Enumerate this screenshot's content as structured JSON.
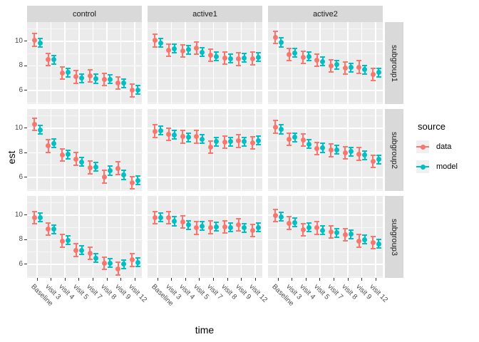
{
  "colors": {
    "data": "#F8766D",
    "model": "#00BFC4",
    "panel_bg": "#EBEBEB",
    "strip_bg": "#D9D9D9",
    "grid": "#FFFFFF",
    "tick_text": "#4D4D4D",
    "axis_title_text": "#000000"
  },
  "chart_data": {
    "type": "pointrange-facet-grid",
    "title": "",
    "xlabel": "time",
    "ylabel": "est",
    "facet_columns": [
      "control",
      "active1",
      "active2"
    ],
    "facet_rows": [
      "subgroup1",
      "subgroup2",
      "subgroup3"
    ],
    "x_categories": [
      "Baseline",
      "visit 3",
      "visit 4",
      "visit 5",
      "visit 7",
      "visit 8",
      "visit 9",
      "visit 12"
    ],
    "y_ticks": [
      6,
      8,
      10
    ],
    "y_minor_gridlines": [
      5,
      7,
      9,
      11
    ],
    "ylim": [
      4.9,
      11.55
    ],
    "grid": "on",
    "legend": {
      "title": "source",
      "position": "right",
      "entries": [
        {
          "label": "data",
          "color": "#F8766D"
        },
        {
          "label": "model",
          "color": "#00BFC4"
        }
      ]
    },
    "error_halfwidth": {
      "data": 0.5,
      "model": 0.35
    },
    "panels": [
      {
        "row": "subgroup1",
        "col": "control",
        "series": {
          "data": [
            10.1,
            8.5,
            7.4,
            7.1,
            7.2,
            6.9,
            6.6,
            6.0
          ],
          "model": [
            9.85,
            8.5,
            7.45,
            7.0,
            6.95,
            6.9,
            6.6,
            6.05
          ]
        }
      },
      {
        "row": "subgroup1",
        "col": "active1",
        "series": {
          "data": [
            10.05,
            9.25,
            9.2,
            9.45,
            8.85,
            8.65,
            8.55,
            8.6
          ],
          "model": [
            9.85,
            9.4,
            9.3,
            9.1,
            8.75,
            8.6,
            8.65,
            8.7
          ]
        }
      },
      {
        "row": "subgroup1",
        "col": "active2",
        "series": {
          "data": [
            10.3,
            8.9,
            8.7,
            8.45,
            8.0,
            7.8,
            7.9,
            7.3
          ],
          "model": [
            9.9,
            9.05,
            8.75,
            8.35,
            8.1,
            7.85,
            7.7,
            7.45
          ]
        }
      },
      {
        "row": "subgroup2",
        "col": "control",
        "series": {
          "data": [
            10.3,
            8.55,
            7.8,
            7.5,
            6.8,
            6.05,
            6.75,
            5.55
          ],
          "model": [
            9.85,
            8.75,
            7.85,
            7.25,
            6.85,
            6.55,
            6.2,
            5.75
          ]
        }
      },
      {
        "row": "subgroup2",
        "col": "active1",
        "series": {
          "data": [
            9.75,
            9.5,
            9.3,
            9.3,
            8.45,
            8.85,
            8.95,
            8.8
          ],
          "model": [
            9.8,
            9.45,
            9.25,
            9.1,
            8.9,
            8.9,
            8.9,
            9.0
          ]
        }
      },
      {
        "row": "subgroup2",
        "col": "active2",
        "series": {
          "data": [
            10.1,
            9.1,
            9.05,
            8.35,
            8.2,
            8.0,
            7.9,
            7.3
          ],
          "model": [
            9.9,
            9.25,
            8.7,
            8.4,
            8.25,
            8.1,
            7.8,
            7.45
          ]
        }
      },
      {
        "row": "subgroup3",
        "col": "control",
        "series": {
          "data": [
            9.8,
            8.85,
            7.9,
            7.15,
            6.9,
            6.1,
            5.65,
            6.35
          ],
          "model": [
            9.8,
            8.85,
            7.95,
            7.15,
            6.5,
            6.1,
            6.0,
            6.15
          ]
        }
      },
      {
        "row": "subgroup3",
        "col": "active1",
        "series": {
          "data": [
            9.8,
            9.8,
            9.45,
            8.95,
            9.0,
            9.05,
            9.2,
            8.75
          ],
          "model": [
            9.8,
            9.5,
            9.2,
            9.1,
            9.05,
            9.0,
            8.95,
            9.0
          ]
        }
      },
      {
        "row": "subgroup3",
        "col": "active2",
        "series": {
          "data": [
            9.95,
            9.35,
            8.8,
            8.95,
            8.65,
            8.4,
            7.9,
            7.75
          ],
          "model": [
            9.85,
            9.4,
            9.0,
            8.75,
            8.55,
            8.45,
            8.0,
            7.65
          ]
        }
      }
    ]
  }
}
